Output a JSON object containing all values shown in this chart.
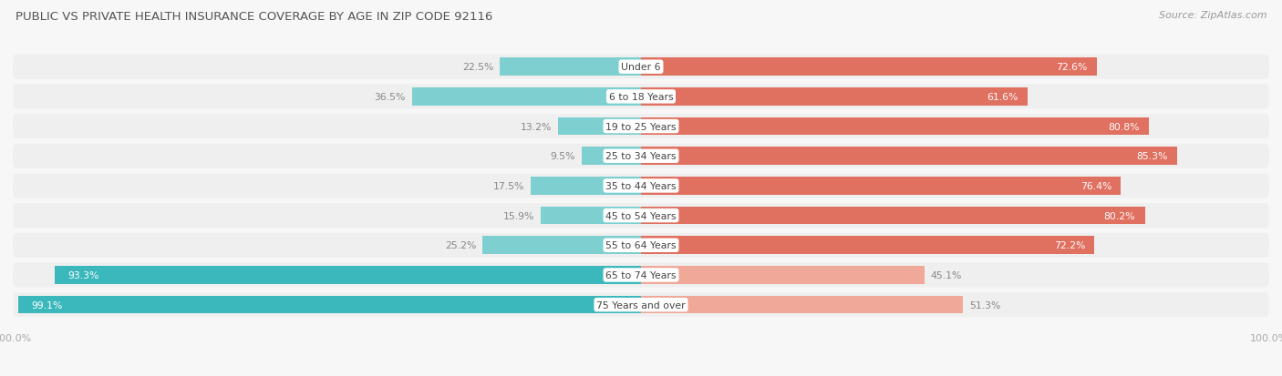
{
  "title": "PUBLIC VS PRIVATE HEALTH INSURANCE COVERAGE BY AGE IN ZIP CODE 92116",
  "source": "Source: ZipAtlas.com",
  "categories": [
    "Under 6",
    "6 to 18 Years",
    "19 to 25 Years",
    "25 to 34 Years",
    "35 to 44 Years",
    "45 to 54 Years",
    "55 to 64 Years",
    "65 to 74 Years",
    "75 Years and over"
  ],
  "public_values": [
    22.5,
    36.5,
    13.2,
    9.5,
    17.5,
    15.9,
    25.2,
    93.3,
    99.1
  ],
  "private_values": [
    72.6,
    61.6,
    80.8,
    85.3,
    76.4,
    80.2,
    72.2,
    45.1,
    51.3
  ],
  "public_color_dark": "#3bb8bc",
  "public_color_light": "#7ecfcf",
  "private_color_dark": "#e07060",
  "private_color_light": "#f0a898",
  "row_bg_color": "#efefef",
  "outer_bg_color": "#f7f7f7",
  "title_color": "#555555",
  "source_color": "#999999",
  "center_label_color": "#444444",
  "value_label_dark": "#888888",
  "value_label_white": "#ffffff",
  "bar_height": 0.6,
  "figsize": [
    14.06,
    4.14
  ],
  "dpi": 100,
  "xlim_left": -100,
  "xlim_right": 100
}
